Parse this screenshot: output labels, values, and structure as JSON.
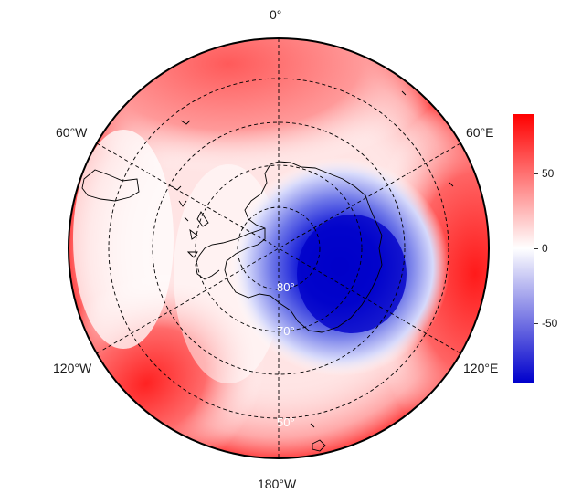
{
  "map": {
    "projection": "south-polar-stereographic",
    "colormap": [
      "#0000cc",
      "#ffffff",
      "#ff0000"
    ],
    "longitude_labels": {
      "lon_0": "0°",
      "lon_60w": "60°W",
      "lon_60e": "60°E",
      "lon_120w": "120°W",
      "lon_120e": "120°E",
      "lon_180": "180°W"
    },
    "latitude_labels": {
      "lat_80": "80°",
      "lat_70": "70°",
      "lat_50": "50°"
    }
  },
  "colorbar": {
    "range": [
      -90,
      90
    ],
    "ticks": [
      {
        "value": 50,
        "label": "50"
      },
      {
        "value": 0,
        "label": "0"
      },
      {
        "value": -50,
        "label": "-50"
      }
    ]
  }
}
